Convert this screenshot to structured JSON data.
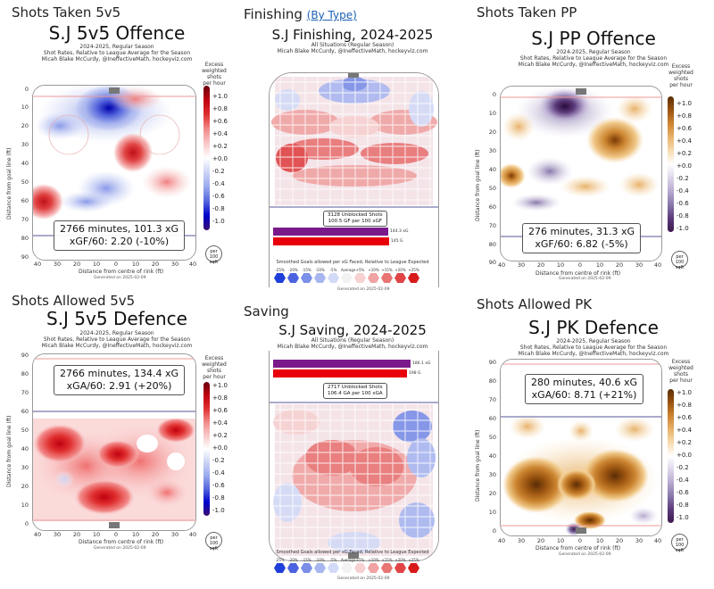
{
  "sections": {
    "shots_taken_5v5": "Shots Taken 5v5",
    "finishing": "Finishing",
    "finishing_link": "(By Type)",
    "shots_taken_pp": "Shots Taken PP",
    "shots_allowed_5v5": "Shots Allowed 5v5",
    "saving": "Saving",
    "shots_allowed_pk": "Shots Allowed PK"
  },
  "common": {
    "subtitle": "2024-2025, Regular Season\nShot Rates, Relative to League Average for the Season\nMicah Blake McCurdy, @IneffectiveMath, hockeyviz.com",
    "subtitle_all": "All Situations (Regular Season)\nMicah Blake McCurdy, @IneffectiveMath, hockeyviz.com",
    "ylabel": "Distance from goal line (ft)",
    "xlabel": "Distance from centre of rink (ft)",
    "generated": "Generated on 2025-02-09",
    "colorbar_title": "Excess\nweighted shots\nper hour",
    "per_area": "per\n100\nsqft",
    "x_ticks": [
      "40",
      "30",
      "20",
      "10",
      "0",
      "10",
      "20",
      "30",
      "40"
    ],
    "y_ticks_offence": [
      "0",
      "10",
      "20",
      "30",
      "40",
      "50",
      "60",
      "70",
      "80",
      "90"
    ],
    "y_ticks_defence": [
      "90",
      "80",
      "70",
      "60",
      "50",
      "40",
      "30",
      "20",
      "10",
      "0"
    ],
    "cb_ticks": [
      "+1.0",
      "+0.8",
      "+0.6",
      "+0.4",
      "+0.2",
      "+0.0",
      "-0.2",
      "-0.4",
      "-0.6",
      "-0.8",
      "-1.0"
    ],
    "hex_legend_labels": [
      "-25%",
      "-20%",
      "-15%",
      "-10%",
      "-5%",
      "Average",
      "+5%",
      "+10%",
      "+15%",
      "+20%",
      "+25%"
    ]
  },
  "panels": {
    "off5v5": {
      "title": "S.J 5v5 Offence",
      "stat": "2766 minutes, 101.3 xG\nxGF/60: 2.20 (-10%)"
    },
    "finishing": {
      "title": "S.J Finishing, 2024-2025",
      "stat": "3128 Unblocked Shots\n100.5 GF per 100 xGF",
      "bar1_label": "144.3 xG",
      "bar2_label": "145 G",
      "legend_title": "Smoothed Goals allowed per xG Faced, Relative to League Expected"
    },
    "pp": {
      "title": "S.J PP Offence",
      "stat": "276 minutes, 31.3 xG\nxGF/60: 6.82 (-5%)"
    },
    "def5v5": {
      "title": "S.J 5v5 Defence",
      "stat": "2766 minutes, 134.4 xG\nxGA/60: 2.91 (+20%)"
    },
    "saving": {
      "title": "S.J Saving, 2024-2025",
      "stat": "2717 Unblocked Shots\n106.4 GA per 100 xGA",
      "bar1_label": "186.1 xG",
      "bar2_label": "198 G",
      "legend_title": "Smoothed Goals allowed per xG Faced, Relative to League Expected"
    },
    "pk": {
      "title": "S.J PK Defence",
      "stat": "280 minutes, 40.6 xG\nxGA/60: 8.71 (+21%)"
    }
  },
  "colors": {
    "blue_red_scale": [
      "#3b0f70",
      "#0000cc",
      "#5566dd",
      "#99aaee",
      "#ccd4f5",
      "#ffffff",
      "#f9c9c9",
      "#f28a8a",
      "#e03030",
      "#c00010",
      "#6b0010"
    ],
    "purple_brown_scale": [
      "#3d1a4d",
      "#5b3a7a",
      "#8877aa",
      "#b7a9cf",
      "#ddd6ea",
      "#ffffff",
      "#f6dbb0",
      "#e8b26a",
      "#cc8530",
      "#9a5410",
      "#5a2d05"
    ],
    "hex_legend": [
      "#1f3fd9",
      "#4b63e0",
      "#7b8ee8",
      "#a8b6f0",
      "#d3daf7",
      "#f2f2f2",
      "#f7d1d1",
      "#f0a3a3",
      "#e87474",
      "#e04444",
      "#d81a1a"
    ],
    "bar_purple": "#7a1a8a",
    "bar_red": "#e8000b",
    "link": "#1a5fb4"
  }
}
